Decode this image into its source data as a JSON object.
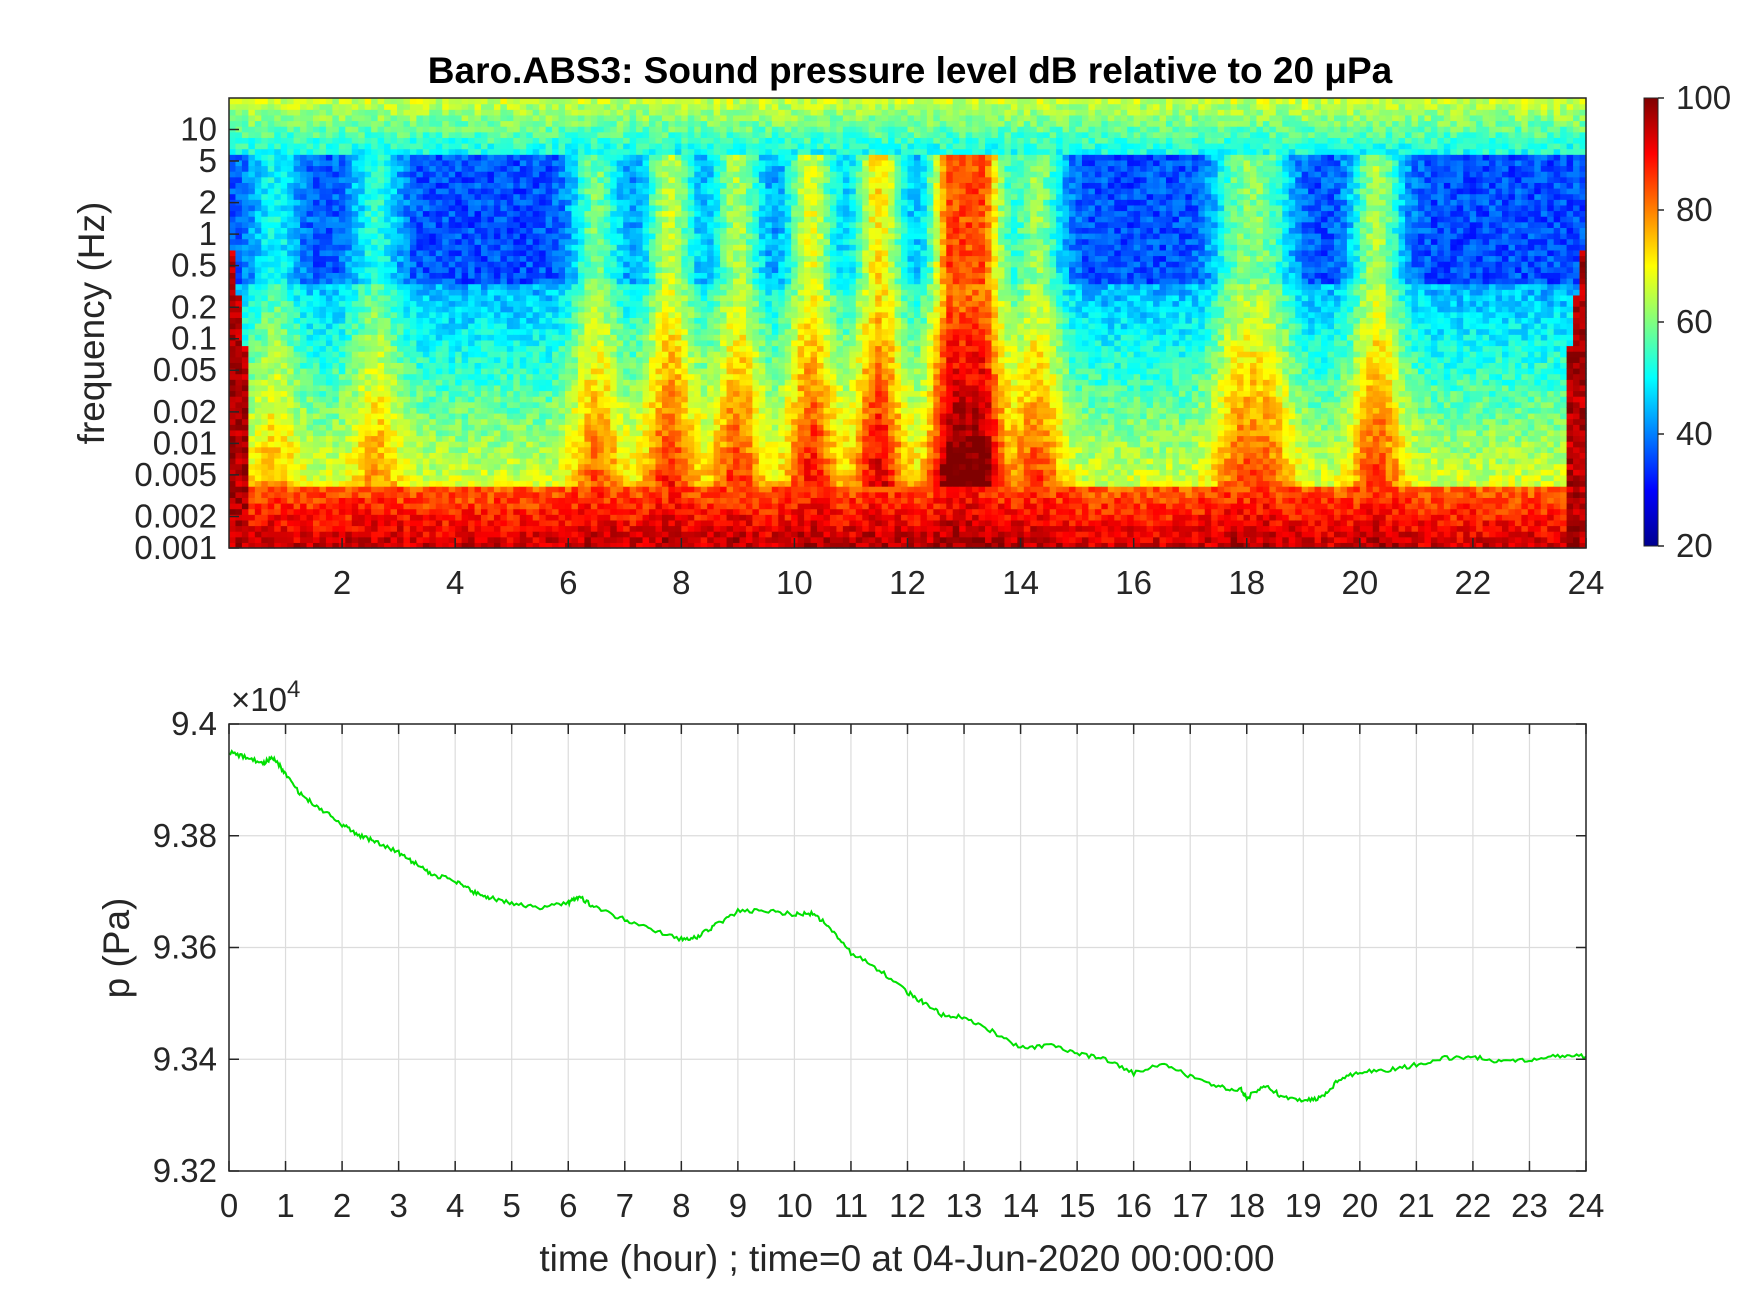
{
  "chart_data": [
    {
      "type": "heatmap",
      "title": "Baro.ABS3: Sound pressure level dB relative to 20 μPa",
      "xlabel": "",
      "ylabel": "frequency (Hz)",
      "x_ticks": [
        "2",
        "4",
        "6",
        "8",
        "10",
        "12",
        "14",
        "16",
        "18",
        "20",
        "22",
        "24"
      ],
      "y_ticks": [
        "10",
        "5",
        "2",
        "1",
        "0.5",
        "0.2",
        "0.1",
        "0.05",
        "0.02",
        "0.01",
        "0.005",
        "0.002",
        "0.001"
      ],
      "xlim": [
        0,
        24
      ],
      "ylim": [
        0.001,
        20
      ],
      "y_scale": "log",
      "colorbar": {
        "colormap": "jet",
        "range": [
          20,
          100
        ],
        "ticks": [
          "20",
          "40",
          "60",
          "80",
          "100"
        ]
      },
      "activity_bursts_hour": [
        {
          "hour": 0.8,
          "strength": 0.35
        },
        {
          "hour": 2.6,
          "strength": 0.4
        },
        {
          "hour": 6.5,
          "strength": 0.55
        },
        {
          "hour": 7.8,
          "strength": 0.7
        },
        {
          "hour": 9.0,
          "strength": 0.65
        },
        {
          "hour": 10.3,
          "strength": 0.75
        },
        {
          "hour": 11.5,
          "strength": 0.85
        },
        {
          "hour": 12.8,
          "strength": 1.0
        },
        {
          "hour": 13.3,
          "strength": 0.95
        },
        {
          "hour": 14.3,
          "strength": 0.6
        },
        {
          "hour": 17.8,
          "strength": 0.45
        },
        {
          "hour": 18.4,
          "strength": 0.45
        },
        {
          "hour": 20.3,
          "strength": 0.65
        }
      ]
    },
    {
      "type": "line",
      "title": "",
      "xlabel": "time (hour) ; time=0 at 04-Jun-2020 00:00:00",
      "ylabel": "p (Pa)",
      "y_exponent_label": "×10",
      "y_exponent": "4",
      "x_ticks": [
        "0",
        "1",
        "2",
        "3",
        "4",
        "5",
        "6",
        "7",
        "8",
        "9",
        "10",
        "11",
        "12",
        "13",
        "14",
        "15",
        "16",
        "17",
        "18",
        "19",
        "20",
        "21",
        "22",
        "23",
        "24"
      ],
      "y_ticks": [
        "9.32",
        "9.34",
        "9.36",
        "9.38",
        "9.4"
      ],
      "xlim": [
        0,
        24
      ],
      "ylim": [
        9.32,
        9.4
      ],
      "grid": true,
      "color": "#00e000",
      "series": [
        {
          "x": [
            0,
            0.3,
            0.6,
            0.8,
            1.0,
            1.3,
            1.6,
            2.0,
            2.3,
            2.6,
            3.0,
            3.3,
            3.6,
            4.0,
            4.3,
            4.6,
            5.0,
            5.5,
            6.0,
            6.2,
            6.5,
            7.0,
            7.5,
            8.0,
            8.3,
            8.6,
            9.0,
            9.5,
            10.0,
            10.3,
            10.6,
            11.0,
            11.5,
            12.0,
            12.3,
            12.6,
            13.0,
            13.5,
            14.0,
            14.5,
            15.0,
            15.5,
            16.0,
            16.5,
            17.0,
            17.5,
            17.9,
            18.0,
            18.3,
            18.6,
            19.0,
            19.3,
            19.6,
            20.0,
            20.5,
            21.0,
            21.5,
            22.0,
            22.5,
            23.0,
            23.5,
            24.0
          ],
          "y": [
            9.395,
            9.394,
            9.393,
            9.394,
            9.391,
            9.387,
            9.385,
            9.382,
            9.38,
            9.379,
            9.377,
            9.375,
            9.373,
            9.372,
            9.37,
            9.369,
            9.368,
            9.367,
            9.368,
            9.369,
            9.367,
            9.365,
            9.363,
            9.3615,
            9.362,
            9.364,
            9.3665,
            9.3665,
            9.366,
            9.366,
            9.364,
            9.359,
            9.356,
            9.352,
            9.35,
            9.348,
            9.3475,
            9.345,
            9.342,
            9.3425,
            9.341,
            9.34,
            9.3375,
            9.339,
            9.337,
            9.335,
            9.3345,
            9.333,
            9.3355,
            9.3335,
            9.3325,
            9.333,
            9.336,
            9.3378,
            9.338,
            9.339,
            9.3402,
            9.3405,
            9.3395,
            9.34,
            9.3405,
            9.3405
          ]
        }
      ]
    }
  ]
}
